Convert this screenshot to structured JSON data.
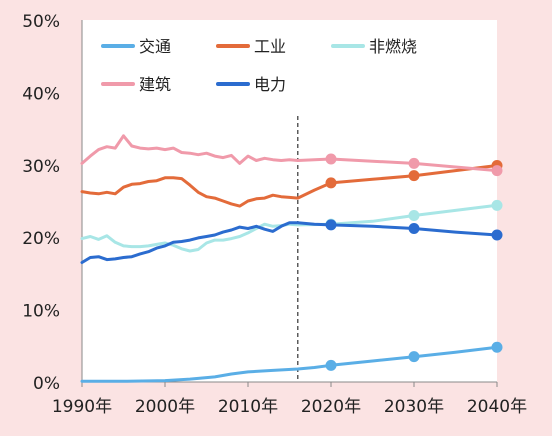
{
  "chart_data": {
    "type": "line",
    "x_ticks": [
      {
        "label": "1990年",
        "value": 1990
      },
      {
        "label": "2000年",
        "value": 2000
      },
      {
        "label": "2010年",
        "value": 2010
      },
      {
        "label": "2020年",
        "value": 2020
      },
      {
        "label": "2030年",
        "value": 2030
      },
      {
        "label": "2040年",
        "value": 2040
      }
    ],
    "y_ticks": [
      "0%",
      "10%",
      "20%",
      "30%",
      "40%",
      "50%"
    ],
    "xlim": [
      1990,
      2040
    ],
    "ylim": [
      0,
      50
    ],
    "divider_x": 2016,
    "legend": {
      "placement": "top",
      "layout": "3 columns, 2 rows"
    },
    "series": [
      {
        "name": "交通",
        "color": "#5aaee6",
        "points": [
          [
            1990,
            0.1
          ],
          [
            1995,
            0.1
          ],
          [
            2000,
            0.2
          ],
          [
            2003,
            0.4
          ],
          [
            2006,
            0.7
          ],
          [
            2008,
            1.1
          ],
          [
            2010,
            1.4
          ],
          [
            2013,
            1.6
          ],
          [
            2016,
            1.8
          ],
          [
            2018,
            2.0
          ],
          [
            2020,
            2.3
          ],
          [
            2025,
            2.9
          ],
          [
            2030,
            3.5
          ],
          [
            2035,
            4.1
          ],
          [
            2040,
            4.8
          ]
        ],
        "markers": [
          2020,
          2030,
          2040
        ]
      },
      {
        "name": "工业",
        "color": "#e36b3a",
        "points": [
          [
            1990,
            26.3
          ],
          [
            1991,
            26.1
          ],
          [
            1992,
            26.0
          ],
          [
            1993,
            26.2
          ],
          [
            1994,
            26.0
          ],
          [
            1995,
            26.9
          ],
          [
            1996,
            27.3
          ],
          [
            1997,
            27.4
          ],
          [
            1998,
            27.7
          ],
          [
            1999,
            27.8
          ],
          [
            2000,
            28.2
          ],
          [
            2001,
            28.2
          ],
          [
            2002,
            28.1
          ],
          [
            2003,
            27.2
          ],
          [
            2004,
            26.2
          ],
          [
            2005,
            25.6
          ],
          [
            2006,
            25.4
          ],
          [
            2007,
            25.0
          ],
          [
            2008,
            24.6
          ],
          [
            2009,
            24.3
          ],
          [
            2010,
            25.0
          ],
          [
            2011,
            25.3
          ],
          [
            2012,
            25.4
          ],
          [
            2013,
            25.8
          ],
          [
            2014,
            25.6
          ],
          [
            2015,
            25.5
          ],
          [
            2016,
            25.4
          ],
          [
            2018,
            26.5
          ],
          [
            2020,
            27.5
          ],
          [
            2025,
            28.0
          ],
          [
            2030,
            28.5
          ],
          [
            2035,
            29.2
          ],
          [
            2040,
            29.9
          ]
        ],
        "markers": [
          2020,
          2030,
          2040
        ]
      },
      {
        "name": "非燃烧",
        "color": "#a8e6e6",
        "points": [
          [
            1990,
            19.8
          ],
          [
            1991,
            20.1
          ],
          [
            1992,
            19.7
          ],
          [
            1993,
            20.2
          ],
          [
            1994,
            19.3
          ],
          [
            1995,
            18.8
          ],
          [
            1996,
            18.7
          ],
          [
            1997,
            18.7
          ],
          [
            1998,
            18.8
          ],
          [
            1999,
            19.0
          ],
          [
            2000,
            19.2
          ],
          [
            2001,
            18.9
          ],
          [
            2002,
            18.4
          ],
          [
            2003,
            18.1
          ],
          [
            2004,
            18.3
          ],
          [
            2005,
            19.2
          ],
          [
            2006,
            19.6
          ],
          [
            2007,
            19.6
          ],
          [
            2008,
            19.8
          ],
          [
            2009,
            20.1
          ],
          [
            2010,
            20.6
          ],
          [
            2011,
            21.2
          ],
          [
            2012,
            21.8
          ],
          [
            2013,
            21.5
          ],
          [
            2014,
            21.6
          ],
          [
            2015,
            21.8
          ],
          [
            2016,
            21.7
          ],
          [
            2020,
            21.8
          ],
          [
            2025,
            22.2
          ],
          [
            2030,
            23.0
          ],
          [
            2035,
            23.7
          ],
          [
            2040,
            24.4
          ]
        ],
        "markers": [
          2020,
          2030,
          2040
        ]
      },
      {
        "name": "建筑",
        "color": "#f09aaa",
        "points": [
          [
            1990,
            30.2
          ],
          [
            1991,
            31.2
          ],
          [
            1992,
            32.1
          ],
          [
            1993,
            32.5
          ],
          [
            1994,
            32.3
          ],
          [
            1995,
            34.0
          ],
          [
            1996,
            32.6
          ],
          [
            1997,
            32.3
          ],
          [
            1998,
            32.2
          ],
          [
            1999,
            32.3
          ],
          [
            2000,
            32.1
          ],
          [
            2001,
            32.3
          ],
          [
            2002,
            31.7
          ],
          [
            2003,
            31.6
          ],
          [
            2004,
            31.4
          ],
          [
            2005,
            31.6
          ],
          [
            2006,
            31.2
          ],
          [
            2007,
            31.0
          ],
          [
            2008,
            31.3
          ],
          [
            2009,
            30.2
          ],
          [
            2010,
            31.2
          ],
          [
            2011,
            30.6
          ],
          [
            2012,
            30.9
          ],
          [
            2013,
            30.7
          ],
          [
            2014,
            30.6
          ],
          [
            2015,
            30.7
          ],
          [
            2016,
            30.6
          ],
          [
            2020,
            30.8
          ],
          [
            2025,
            30.5
          ],
          [
            2030,
            30.2
          ],
          [
            2035,
            29.7
          ],
          [
            2040,
            29.2
          ]
        ],
        "markers": [
          2020,
          2030,
          2040
        ]
      },
      {
        "name": "电力",
        "color": "#2b6ccf",
        "points": [
          [
            1990,
            16.5
          ],
          [
            1991,
            17.2
          ],
          [
            1992,
            17.3
          ],
          [
            1993,
            16.9
          ],
          [
            1994,
            17.0
          ],
          [
            1995,
            17.2
          ],
          [
            1996,
            17.3
          ],
          [
            1997,
            17.7
          ],
          [
            1998,
            18.0
          ],
          [
            1999,
            18.5
          ],
          [
            2000,
            18.8
          ],
          [
            2001,
            19.3
          ],
          [
            2002,
            19.4
          ],
          [
            2003,
            19.6
          ],
          [
            2004,
            19.9
          ],
          [
            2005,
            20.1
          ],
          [
            2006,
            20.3
          ],
          [
            2007,
            20.7
          ],
          [
            2008,
            21.0
          ],
          [
            2009,
            21.4
          ],
          [
            2010,
            21.2
          ],
          [
            2011,
            21.5
          ],
          [
            2012,
            21.1
          ],
          [
            2013,
            20.8
          ],
          [
            2014,
            21.5
          ],
          [
            2015,
            22.0
          ],
          [
            2016,
            22.0
          ],
          [
            2018,
            21.8
          ],
          [
            2020,
            21.7
          ],
          [
            2025,
            21.5
          ],
          [
            2030,
            21.2
          ],
          [
            2035,
            20.7
          ],
          [
            2040,
            20.3
          ]
        ],
        "markers": [
          2020,
          2030,
          2040
        ]
      }
    ]
  }
}
